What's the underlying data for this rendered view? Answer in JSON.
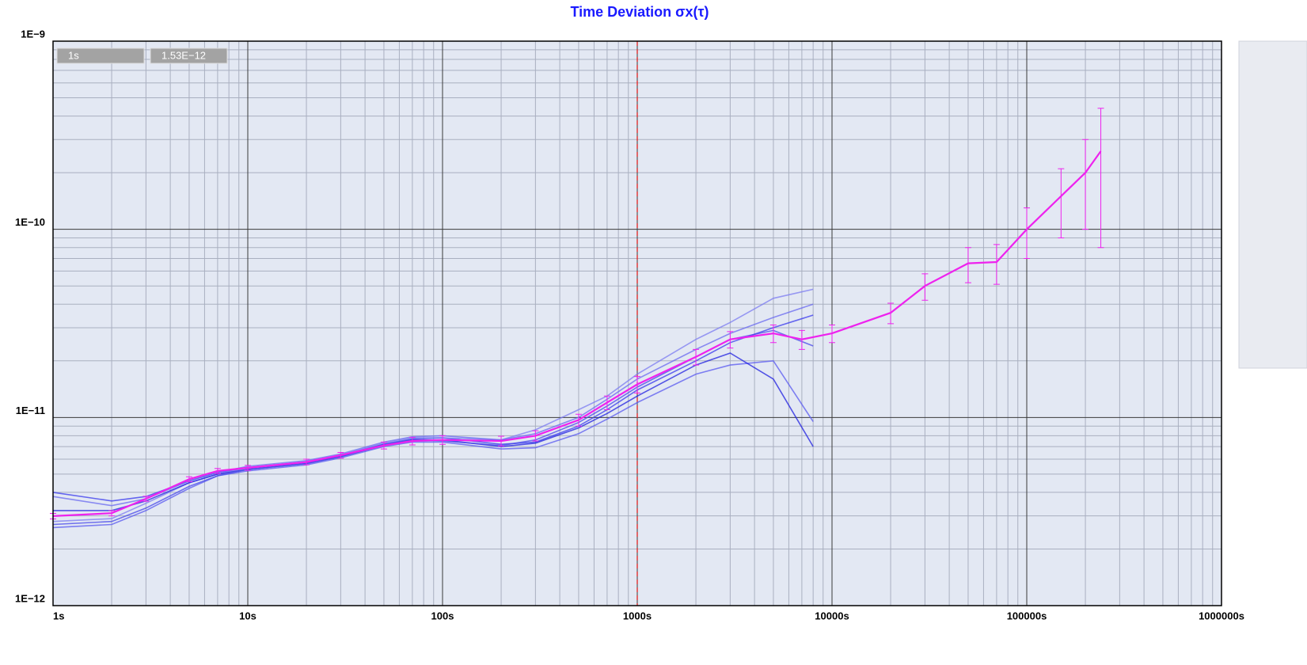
{
  "chart_data": {
    "type": "line",
    "title": "Time Deviation σx(τ)",
    "readout": [
      "1s",
      "1.53E−12"
    ],
    "xlog": true,
    "ylog": true,
    "grid": true,
    "minor_grid": true,
    "cursor_x": 1000,
    "cursor_color": "#e02020",
    "xlim": [
      1,
      1000000
    ],
    "xticks": [
      {
        "value": 1,
        "label": "1s"
      },
      {
        "value": 10,
        "label": "10s"
      },
      {
        "value": 100,
        "label": "100s"
      },
      {
        "value": 1000,
        "label": "1000s"
      },
      {
        "value": 10000,
        "label": "10000s"
      },
      {
        "value": 100000,
        "label": "100000s"
      },
      {
        "value": 1000000,
        "label": "1000000s"
      }
    ],
    "ylim": [
      1e-12,
      1e-09
    ],
    "yticks": [
      {
        "value": 1e-12,
        "label": "1E−12"
      },
      {
        "value": 1e-11,
        "label": "1E−11"
      },
      {
        "value": 1e-10,
        "label": "1E−10"
      },
      {
        "value": 1e-09,
        "label": "1E−9"
      }
    ],
    "series": [
      {
        "color": "#3a3aee",
        "x": [
          1,
          2,
          3,
          5,
          7,
          10,
          20,
          30,
          50,
          70,
          100,
          200,
          300,
          500,
          700,
          1000,
          2000,
          3000,
          5000,
          8000
        ],
        "values": [
          4e-12,
          3.6e-12,
          3.8e-12,
          4.6e-12,
          5.1e-12,
          5.4e-12,
          5.8e-12,
          6.3e-12,
          7.2e-12,
          7.7e-12,
          7.8e-12,
          7.2e-12,
          7.4e-12,
          9e-12,
          1.1e-11,
          1.4e-11,
          2e-11,
          2.5e-11,
          3e-11,
          3.5e-11
        ]
      },
      {
        "color": "#5a5af0",
        "x": [
          1,
          2,
          3,
          5,
          7,
          10,
          20,
          30,
          50,
          70,
          100,
          200,
          300,
          500,
          700,
          1000,
          2000,
          3000,
          5000,
          8000
        ],
        "values": [
          2.6e-12,
          2.7e-12,
          3.2e-12,
          4.2e-12,
          4.9e-12,
          5.2e-12,
          5.6e-12,
          6.1e-12,
          7e-12,
          7.4e-12,
          7.4e-12,
          6.8e-12,
          6.9e-12,
          8.2e-12,
          9.8e-12,
          1.2e-11,
          1.7e-11,
          1.9e-11,
          2e-11,
          9.5e-12
        ]
      },
      {
        "color": "#7c7cf2",
        "x": [
          1,
          2,
          3,
          5,
          7,
          10,
          20,
          30,
          50,
          70,
          100,
          200,
          300,
          500,
          700,
          1000,
          2000,
          3000,
          5000,
          8000
        ],
        "values": [
          2.8e-12,
          2.9e-12,
          3.5e-12,
          4.5e-12,
          5e-12,
          5.4e-12,
          5.8e-12,
          6.3e-12,
          7.3e-12,
          7.8e-12,
          7.8e-12,
          7.6e-12,
          8.6e-12,
          1.1e-11,
          1.3e-11,
          1.7e-11,
          2.6e-11,
          3.2e-11,
          4.3e-11,
          4.8e-11
        ]
      },
      {
        "color": "#2020e0",
        "x": [
          1,
          2,
          3,
          5,
          7,
          10,
          20,
          30,
          50,
          70,
          100,
          200,
          300,
          500,
          700,
          1000,
          2000,
          3000,
          5000,
          8000
        ],
        "values": [
          3.2e-12,
          3.2e-12,
          3.6e-12,
          4.5e-12,
          5e-12,
          5.3e-12,
          5.7e-12,
          6.2e-12,
          7.1e-12,
          7.6e-12,
          7.6e-12,
          7e-12,
          7.3e-12,
          8.8e-12,
          1.05e-11,
          1.3e-11,
          1.9e-11,
          2.2e-11,
          1.6e-11,
          7e-12
        ]
      },
      {
        "color": "#6a6af0",
        "x": [
          1,
          2,
          3,
          5,
          7,
          10,
          20,
          30,
          50,
          70,
          100,
          200,
          300,
          500,
          700,
          1000,
          2000,
          3000,
          5000,
          8000
        ],
        "values": [
          3.8e-12,
          3.4e-12,
          3.7e-12,
          4.6e-12,
          5.1e-12,
          5.5e-12,
          5.9e-12,
          6.4e-12,
          7.4e-12,
          7.9e-12,
          8e-12,
          7.6e-12,
          8.2e-12,
          1e-11,
          1.25e-11,
          1.6e-11,
          2.3e-11,
          2.8e-11,
          3.4e-11,
          4e-11
        ]
      },
      {
        "color": "#4848ea",
        "x": [
          1,
          2,
          3,
          5,
          7,
          10,
          20,
          30,
          50,
          70,
          100,
          200,
          300,
          500,
          700,
          1000,
          2000,
          3000,
          5000,
          8000
        ],
        "values": [
          2.7e-12,
          2.8e-12,
          3.3e-12,
          4.3e-12,
          4.9e-12,
          5.3e-12,
          5.7e-12,
          6.2e-12,
          7.2e-12,
          7.6e-12,
          7.5e-12,
          7.1e-12,
          7.6e-12,
          9.4e-12,
          1.15e-11,
          1.45e-11,
          2.1e-11,
          2.6e-11,
          2.9e-11,
          2.4e-11
        ]
      },
      {
        "color": "#ee22ee",
        "x": [
          1,
          2,
          3,
          5,
          7,
          10,
          20,
          30,
          50,
          70,
          100,
          200,
          300,
          500,
          700,
          1000,
          2000,
          3000,
          5000,
          7000,
          10000,
          20000,
          30000,
          50000,
          70000,
          100000,
          150000,
          200000,
          240000
        ],
        "values": [
          2.99e-12,
          3.1e-12,
          3.7e-12,
          4.7e-12,
          5.2e-12,
          5.4e-12,
          5.8e-12,
          6.3e-12,
          7.1e-12,
          7.5e-12,
          7.6e-12,
          7.5e-12,
          8e-12,
          9.7e-12,
          1.2e-11,
          1.5e-11,
          2.1e-11,
          2.6e-11,
          2.8e-11,
          2.6e-11,
          2.8e-11,
          3.6e-11,
          5e-11,
          6.6e-11,
          6.7e-11,
          1e-10,
          1.5e-10,
          2e-10,
          2.6e-10
        ],
        "errors": [
          1e-13,
          1e-13,
          1.1e-13,
          1.4e-13,
          1.6e-13,
          1.6e-13,
          2e-13,
          2.2e-13,
          3e-13,
          3.5e-13,
          4e-13,
          4.5e-13,
          5e-13,
          7e-13,
          1e-12,
          1.5e-12,
          2e-12,
          2.6e-12,
          3e-12,
          3e-12,
          3e-12,
          4.5e-12,
          8e-12,
          1.4e-11,
          1.6e-11,
          3e-11,
          6e-11,
          1e-10,
          1.8e-10
        ]
      }
    ]
  }
}
